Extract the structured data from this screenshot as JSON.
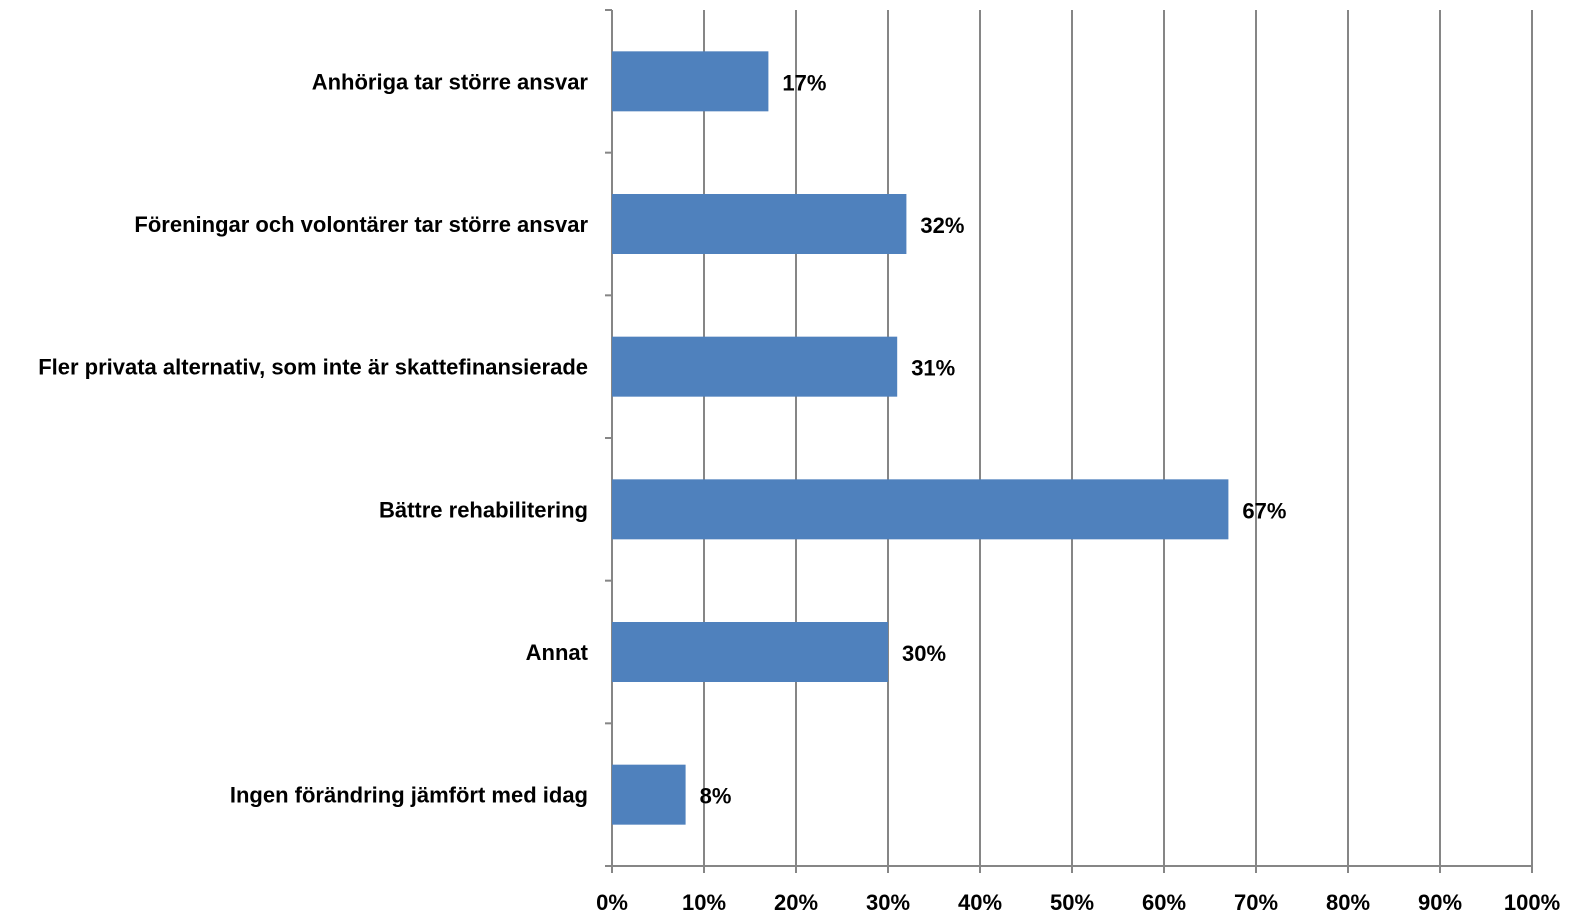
{
  "chart_data": {
    "type": "bar",
    "orientation": "horizontal",
    "categories": [
      "Anhöriga tar större ansvar",
      "Föreningar och volontärer tar större ansvar",
      "Fler privata alternativ, som inte är skattefinansierade",
      "Bättre rehabilitering",
      "Annat",
      "Ingen förändring jämfört med idag"
    ],
    "values": [
      17,
      32,
      31,
      67,
      30,
      8
    ],
    "value_labels": [
      "17%",
      "32%",
      "31%",
      "67%",
      "30%",
      "8%"
    ],
    "xlim": [
      0,
      100
    ],
    "x_ticks": [
      0,
      10,
      20,
      30,
      40,
      50,
      60,
      70,
      80,
      90,
      100
    ],
    "x_tick_labels": [
      "0%",
      "10%",
      "20%",
      "30%",
      "40%",
      "50%",
      "60%",
      "70%",
      "80%",
      "90%",
      "100%"
    ],
    "grid": "vertical",
    "legend": "none",
    "bar_color": "#4F81BD",
    "grid_color": "#868686"
  }
}
